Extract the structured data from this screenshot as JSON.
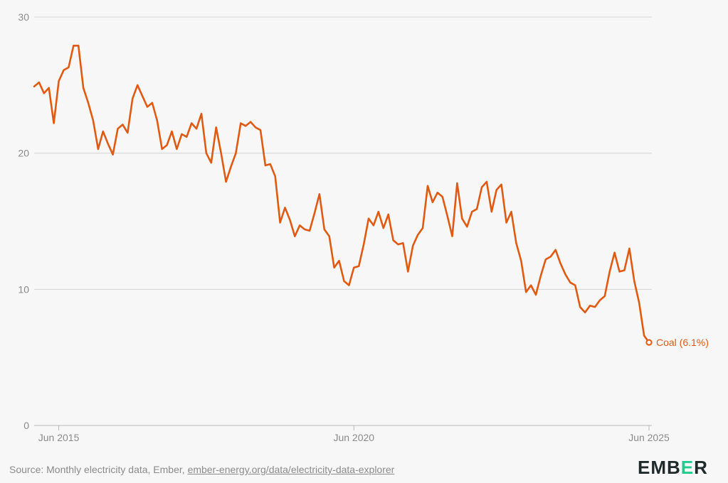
{
  "footer": {
    "source_prefix": "Source: Monthly electricity data, Ember, ",
    "source_link": "ember-energy.org/data/electricity-data-explorer"
  },
  "logo": {
    "pre": "EMB",
    "accent": "E",
    "post": "R"
  },
  "colors": {
    "series": "#e05a12",
    "logo_accent": "#1fcc8e",
    "logo_text": "#1e2a2a"
  },
  "chart_data": {
    "type": "line",
    "title": "",
    "xlabel": "",
    "ylabel": "",
    "ylim": [
      0,
      30
    ],
    "yticks": [
      0,
      10,
      20,
      30
    ],
    "grid": true,
    "xticks": [
      {
        "label": "Jun 2015",
        "value": "2015-06"
      },
      {
        "label": "Jun 2020",
        "value": "2020-06"
      },
      {
        "label": "Jun 2025",
        "value": "2025-06"
      }
    ],
    "series": [
      {
        "name": "Coal",
        "end_label": "Coal (6.1%)",
        "x": [
          "2015-01",
          "2015-02",
          "2015-03",
          "2015-04",
          "2015-05",
          "2015-06",
          "2015-07",
          "2015-08",
          "2015-09",
          "2015-10",
          "2015-11",
          "2015-12",
          "2016-01",
          "2016-02",
          "2016-03",
          "2016-04",
          "2016-05",
          "2016-06",
          "2016-07",
          "2016-08",
          "2016-09",
          "2016-10",
          "2016-11",
          "2016-12",
          "2017-01",
          "2017-02",
          "2017-03",
          "2017-04",
          "2017-05",
          "2017-06",
          "2017-07",
          "2017-08",
          "2017-09",
          "2017-10",
          "2017-11",
          "2017-12",
          "2018-01",
          "2018-02",
          "2018-03",
          "2018-04",
          "2018-05",
          "2018-06",
          "2018-07",
          "2018-08",
          "2018-09",
          "2018-10",
          "2018-11",
          "2018-12",
          "2019-01",
          "2019-02",
          "2019-03",
          "2019-04",
          "2019-05",
          "2019-06",
          "2019-07",
          "2019-08",
          "2019-09",
          "2019-10",
          "2019-11",
          "2019-12",
          "2020-01",
          "2020-02",
          "2020-03",
          "2020-04",
          "2020-05",
          "2020-06",
          "2020-07",
          "2020-08",
          "2020-09",
          "2020-10",
          "2020-11",
          "2020-12",
          "2021-01",
          "2021-02",
          "2021-03",
          "2021-04",
          "2021-05",
          "2021-06",
          "2021-07",
          "2021-08",
          "2021-09",
          "2021-10",
          "2021-11",
          "2021-12",
          "2022-01",
          "2022-02",
          "2022-03",
          "2022-04",
          "2022-05",
          "2022-06",
          "2022-07",
          "2022-08",
          "2022-09",
          "2022-10",
          "2022-11",
          "2022-12",
          "2023-01",
          "2023-02",
          "2023-03",
          "2023-04",
          "2023-05",
          "2023-06",
          "2023-07",
          "2023-08",
          "2023-09",
          "2023-10",
          "2023-11",
          "2023-12",
          "2024-01",
          "2024-02",
          "2024-03",
          "2024-04",
          "2024-05",
          "2024-06",
          "2024-07",
          "2024-08",
          "2024-09",
          "2024-10",
          "2024-11",
          "2024-12",
          "2025-01",
          "2025-02",
          "2025-03",
          "2025-04",
          "2025-05",
          "2025-06"
        ],
        "values": [
          24.9,
          25.2,
          24.4,
          24.8,
          22.2,
          25.3,
          26.1,
          26.3,
          27.9,
          27.9,
          24.8,
          23.7,
          22.4,
          20.3,
          21.6,
          20.7,
          19.9,
          21.8,
          22.1,
          21.5,
          24.0,
          25.0,
          24.2,
          23.4,
          23.7,
          22.4,
          20.3,
          20.6,
          21.6,
          20.3,
          21.4,
          21.2,
          22.2,
          21.8,
          22.9,
          20.0,
          19.3,
          21.9,
          20.0,
          17.9,
          19.0,
          20.0,
          22.2,
          22.0,
          22.3,
          21.9,
          21.7,
          19.1,
          19.2,
          18.3,
          14.9,
          16.0,
          15.1,
          13.9,
          14.7,
          14.4,
          14.3,
          15.6,
          17.0,
          14.4,
          13.9,
          11.6,
          12.1,
          10.6,
          10.3,
          11.6,
          11.7,
          13.3,
          15.2,
          14.7,
          15.7,
          14.5,
          15.5,
          13.6,
          13.3,
          13.4,
          11.3,
          13.2,
          14.0,
          14.5,
          17.6,
          16.4,
          17.1,
          16.8,
          15.4,
          13.9,
          17.8,
          15.2,
          14.6,
          15.7,
          15.9,
          17.5,
          17.9,
          15.7,
          17.3,
          17.7,
          14.9,
          15.7,
          13.4,
          12.1,
          9.8,
          10.3,
          9.6,
          11.0,
          12.2,
          12.4,
          12.9,
          11.9,
          11.1,
          10.5,
          10.3,
          8.7,
          8.3,
          8.8,
          8.7,
          9.2,
          9.5,
          11.3,
          12.7,
          11.3,
          11.4,
          13.0,
          10.6,
          9.0,
          6.6,
          6.1
        ]
      }
    ]
  }
}
